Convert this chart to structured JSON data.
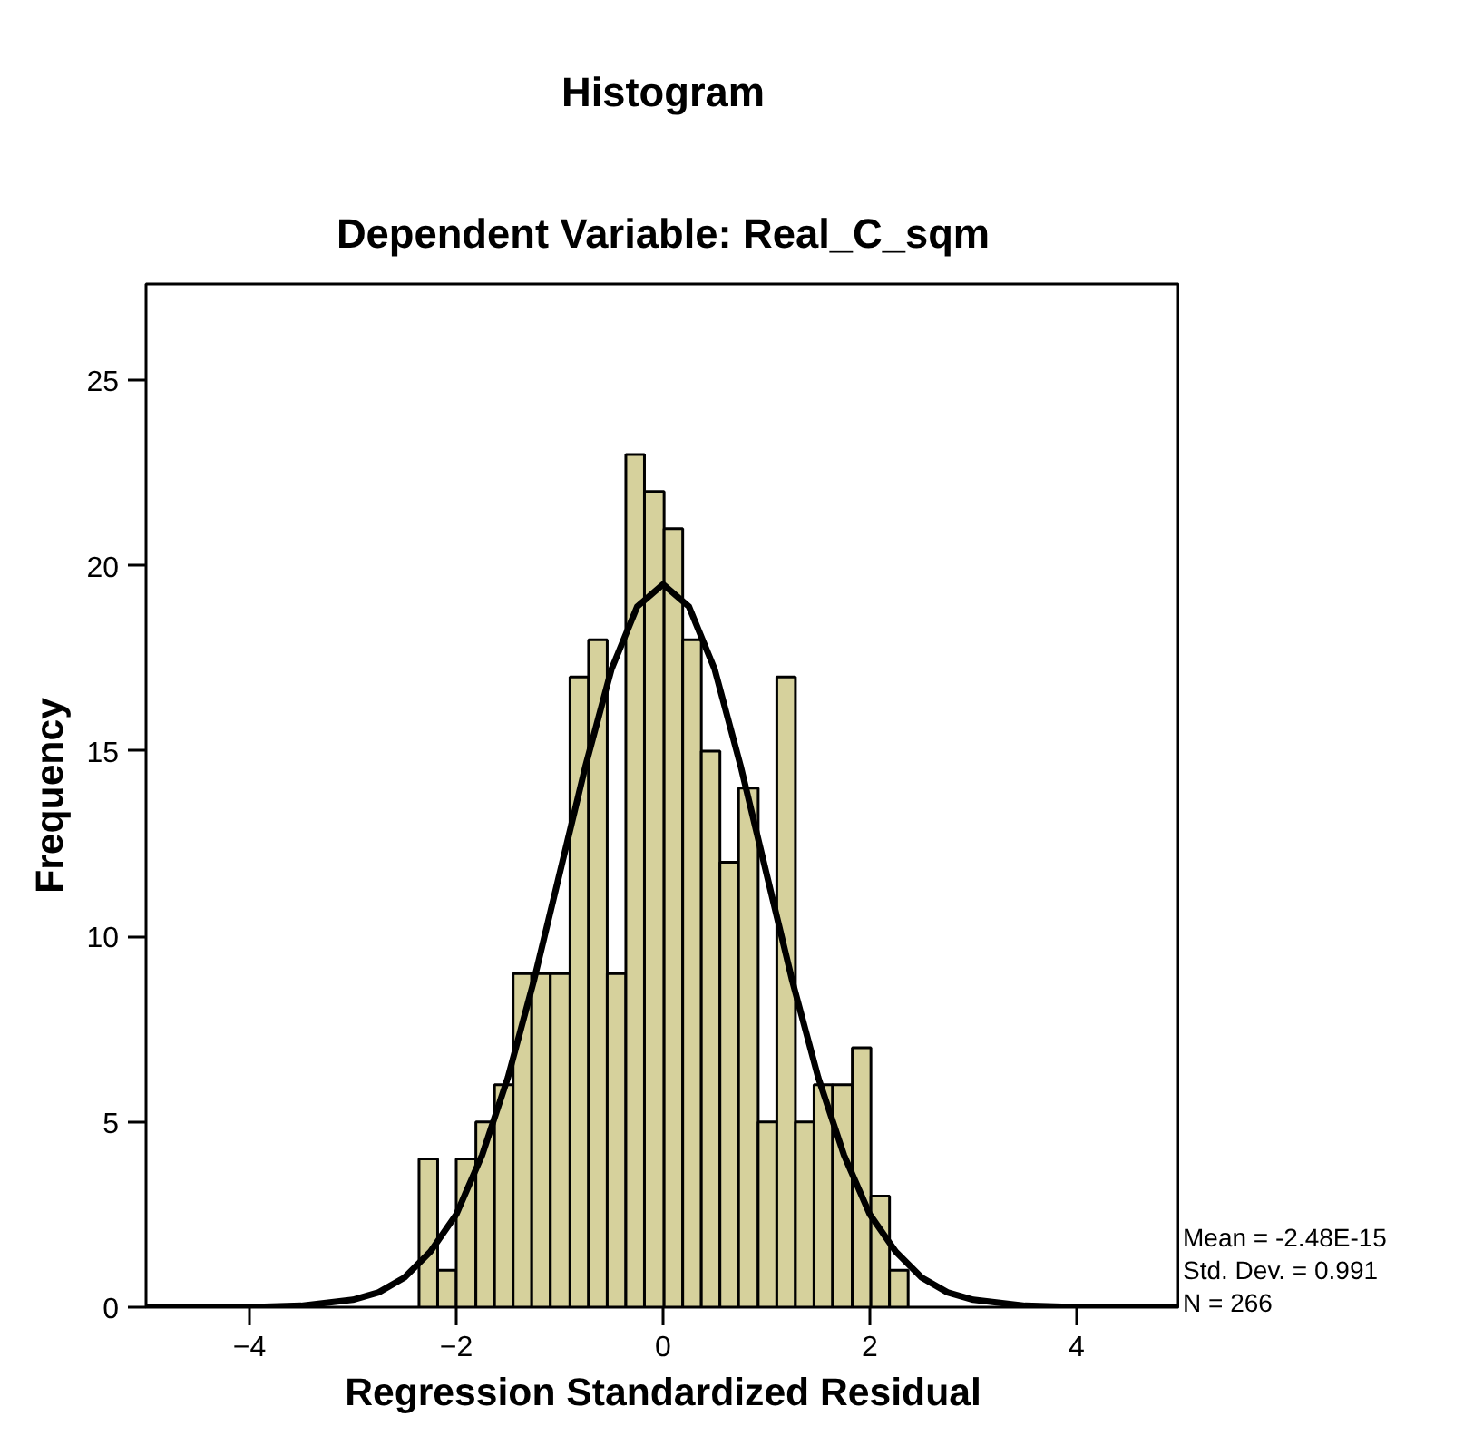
{
  "chart_data": {
    "type": "histogram",
    "title": "Histogram",
    "subtitle": "Dependent Variable: Real_C_sqm",
    "xlabel": "Regression Standardized Residual",
    "ylabel": "Frequency",
    "bins": [
      -2.36,
      -2.18,
      -2.0,
      -1.81,
      -1.63,
      -1.45,
      -1.27,
      -1.09,
      -0.9,
      -0.72,
      -0.54,
      -0.36,
      -0.18,
      0.01,
      0.19,
      0.37,
      0.55,
      0.73,
      0.92,
      1.1,
      1.28,
      1.46,
      1.64,
      1.83,
      2.01,
      2.19,
      2.37
    ],
    "series": [
      {
        "color": "#d6d19c",
        "values": [
          4,
          1,
          4,
          5,
          6,
          9,
          9,
          9,
          17,
          18,
          9,
          23,
          22,
          21,
          18,
          15,
          12,
          14,
          5,
          17,
          5,
          6,
          6,
          7,
          3,
          1
        ]
      },
      {
        "type": "line",
        "color": "#000000",
        "x": [
          -5,
          -4,
          -3.5,
          -3,
          -2.75,
          -2.5,
          -2.25,
          -2,
          -1.75,
          -1.5,
          -1.25,
          -1,
          -0.75,
          -0.5,
          -0.25,
          0,
          0.25,
          0.5,
          0.75,
          1,
          1.25,
          1.5,
          1.75,
          2,
          2.25,
          2.5,
          2.75,
          3,
          3.5,
          4,
          5
        ],
        "values": [
          0,
          0,
          0.04,
          0.2,
          0.4,
          0.8,
          1.5,
          2.5,
          4.1,
          6.2,
          8.8,
          11.7,
          14.6,
          17.2,
          18.9,
          19.5,
          18.9,
          17.2,
          14.6,
          11.7,
          8.8,
          6.2,
          4.1,
          2.5,
          1.5,
          0.8,
          0.4,
          0.2,
          0.04,
          0,
          0
        ]
      }
    ],
    "xlim": [
      -5,
      5
    ],
    "ylim": [
      0,
      27.6
    ],
    "xticks": [
      -4,
      -2,
      0,
      2,
      4
    ],
    "yticks": [
      0,
      5,
      10,
      15,
      20,
      25
    ],
    "grid": false,
    "annotations": [
      "Mean = -2.48E-15",
      "Std. Dev. = 0.991",
      "N = 266"
    ]
  }
}
